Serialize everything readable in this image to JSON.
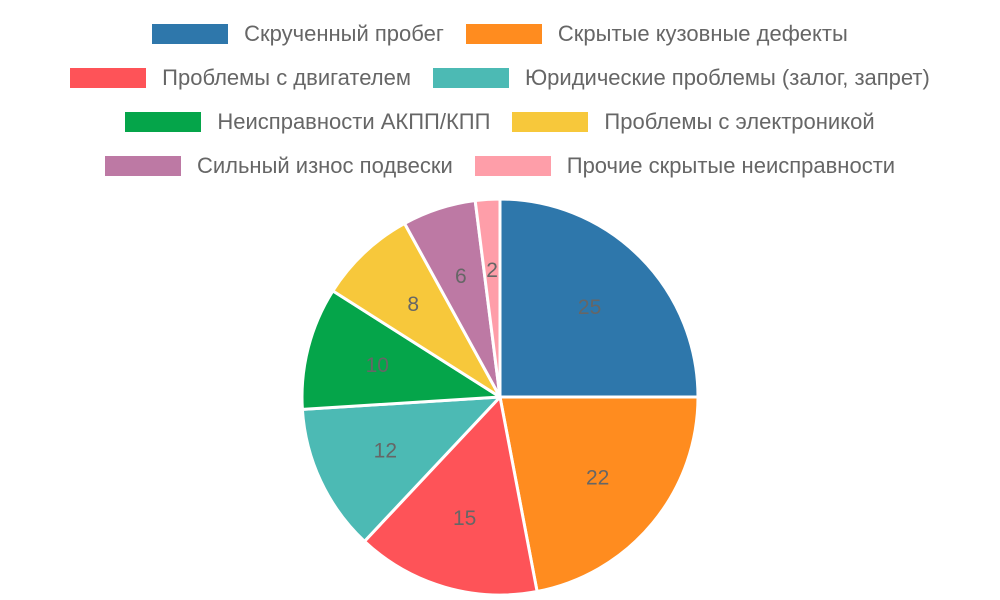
{
  "chart_data": {
    "type": "pie",
    "slices": [
      {
        "label": "Скрученный пробег",
        "value": 25,
        "color": "#2e77ab"
      },
      {
        "label": "Скрытые кузовные дефекты",
        "value": 22,
        "color": "#ff8c1f"
      },
      {
        "label": "Проблемы с двигателем",
        "value": 15,
        "color": "#fe5358"
      },
      {
        "label": "Юридические проблемы (залог, запрет)",
        "value": 12,
        "color": "#4cbab4"
      },
      {
        "label": "Неисправности АКПП/КПП",
        "value": 10,
        "color": "#05a54a"
      },
      {
        "label": "Проблемы с электроникой",
        "value": 8,
        "color": "#f7c83b"
      },
      {
        "label": "Сильный износ подвески",
        "value": 6,
        "color": "#bd79a4"
      },
      {
        "label": "Прочие скрытые неисправности",
        "value": 2,
        "color": "#fe9ea9"
      }
    ],
    "legend_position": "top",
    "show_value_labels": true
  }
}
